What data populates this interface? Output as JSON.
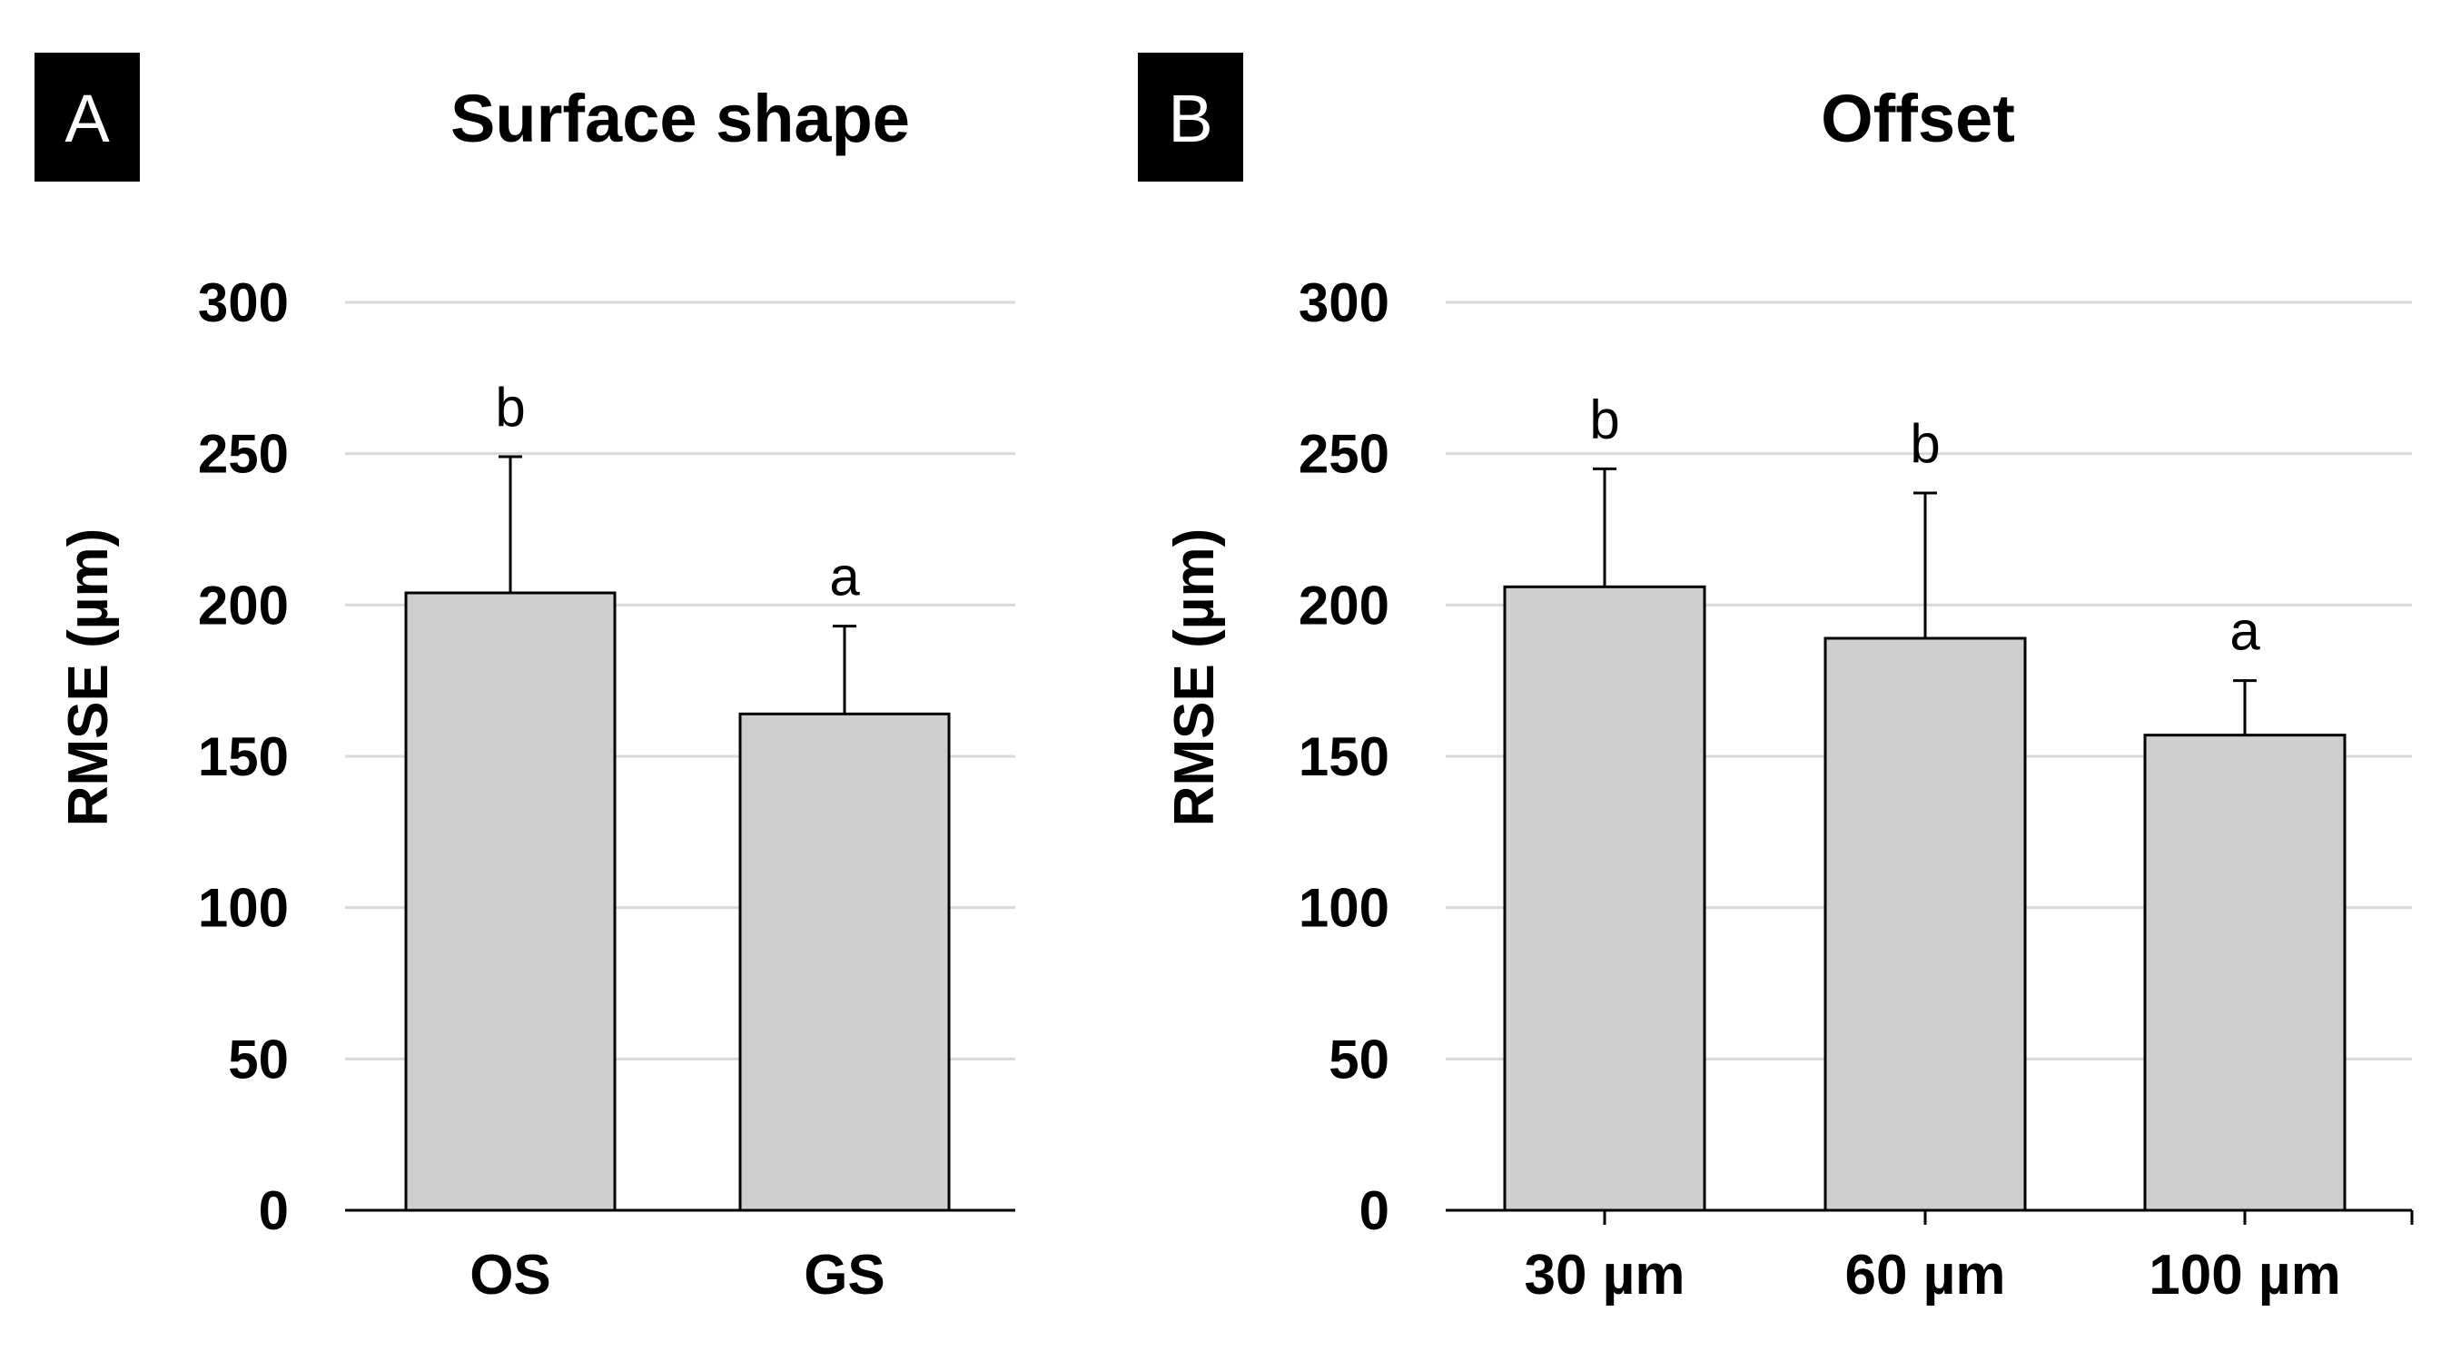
{
  "colors": {
    "bar_fill": "#d0cfcf",
    "bar_stroke": "#000000",
    "grid": "#d9d9d9",
    "label_box": "#000000"
  },
  "chart_data": [
    {
      "panel": "A",
      "type": "bar",
      "title": "Surface shape",
      "xlabel": "",
      "ylabel": "RMSE (µm)",
      "ylim": [
        0,
        300
      ],
      "yticks": [
        "0",
        "50",
        "100",
        "150",
        "200",
        "250",
        "300"
      ],
      "grid": true,
      "categories": [
        "OS",
        "GS"
      ],
      "values": [
        204,
        164
      ],
      "error_plus": [
        45,
        29
      ],
      "significance": [
        "b",
        "a"
      ]
    },
    {
      "panel": "B",
      "type": "bar",
      "title": "Offset",
      "xlabel": "",
      "ylabel": "RMSE (µm)",
      "ylim": [
        0,
        300
      ],
      "yticks": [
        "0",
        "50",
        "100",
        "150",
        "200",
        "250",
        "300"
      ],
      "grid": true,
      "categories": [
        "30 µm",
        "60 µm",
        "100 µm"
      ],
      "values": [
        206,
        189,
        157
      ],
      "error_plus": [
        39,
        48,
        18
      ],
      "significance": [
        "b",
        "b",
        "a"
      ]
    }
  ]
}
